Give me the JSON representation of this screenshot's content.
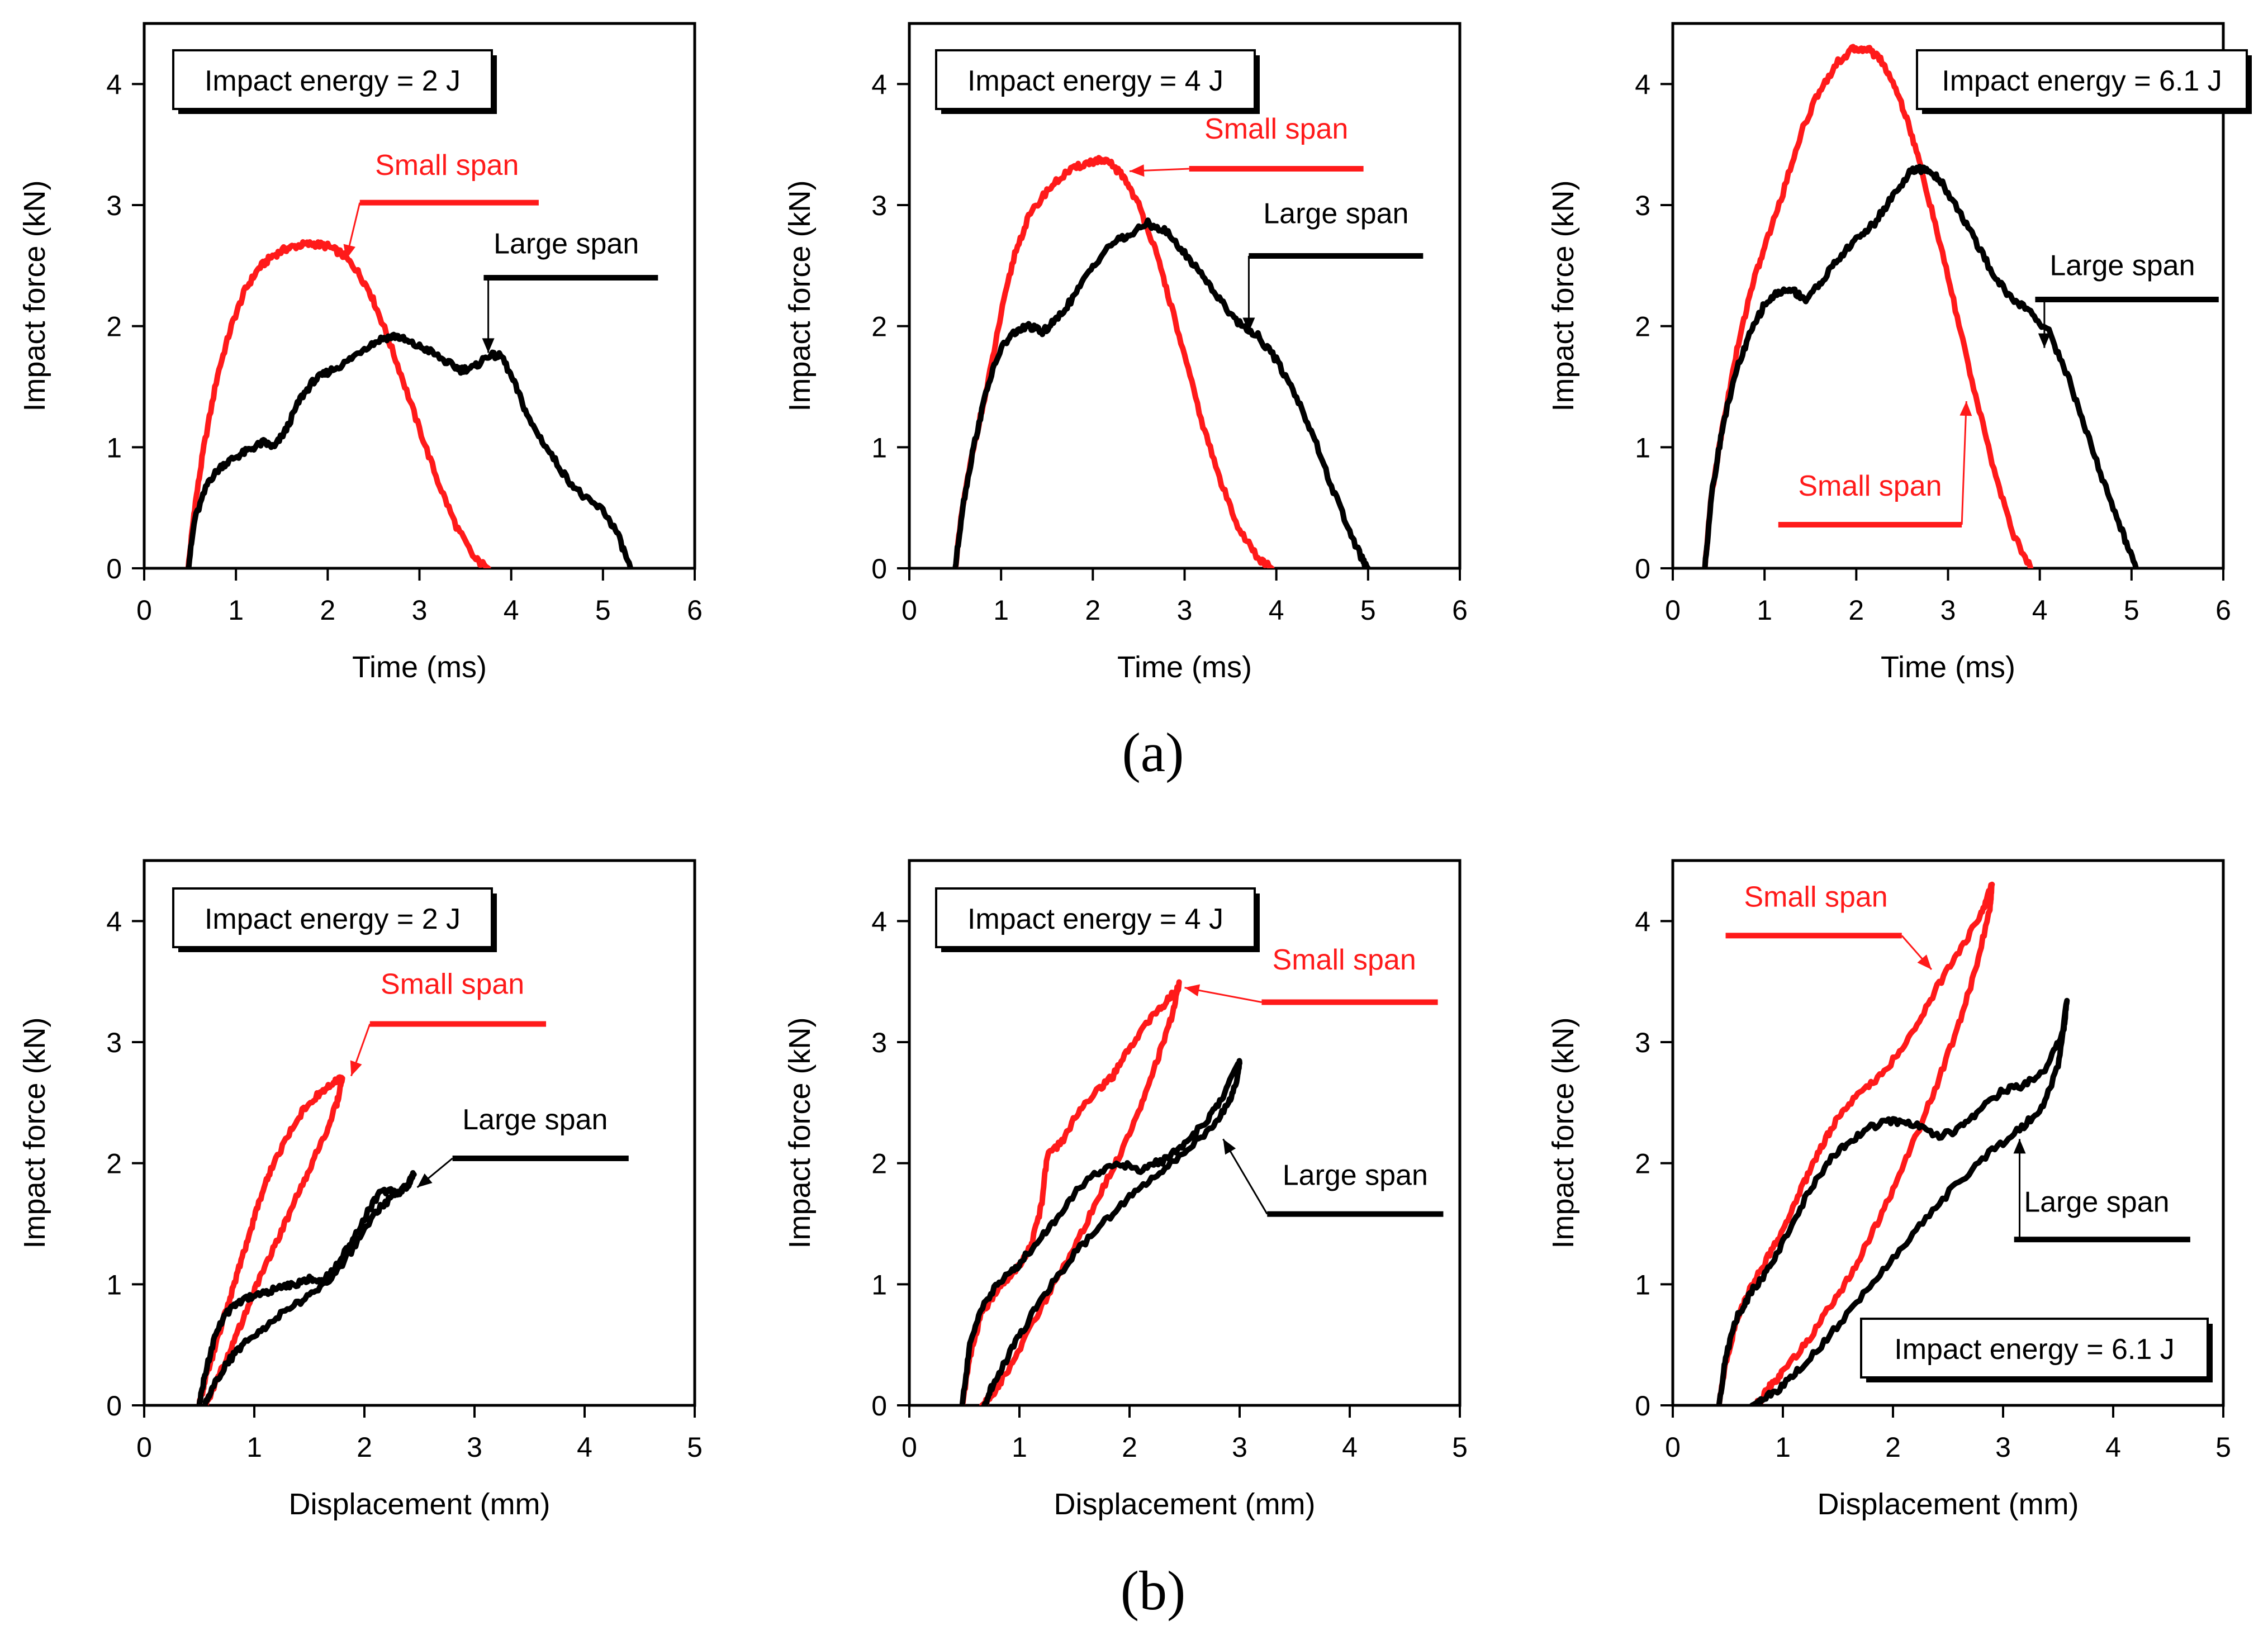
{
  "figure": {
    "row_labels": [
      "(a)",
      "(b)"
    ],
    "colors": {
      "small_span": "#ff1a1a",
      "large_span": "#000000",
      "axes": "#000000"
    }
  },
  "chart_data": [
    {
      "type": "line",
      "xlabel": "Time (ms)",
      "ylabel": "Impact force (kN)",
      "xlim": [
        0,
        6
      ],
      "ylim": [
        0,
        4.5
      ],
      "xticks": [
        0,
        1,
        2,
        3,
        4,
        5,
        6
      ],
      "yticks": [
        0,
        1,
        2,
        3,
        4
      ],
      "grid": false,
      "note": "Impact energy = 2 J",
      "series": [
        {
          "name": "Small span",
          "color": "#ff1a1a",
          "x": [
            0.48,
            0.55,
            0.65,
            0.8,
            0.95,
            1.1,
            1.25,
            1.4,
            1.55,
            1.7,
            1.85,
            2.0,
            2.15,
            2.3,
            2.45,
            2.6,
            2.8,
            3.0,
            3.2,
            3.4,
            3.6,
            3.75
          ],
          "y": [
            0.0,
            0.5,
            1.0,
            1.6,
            2.0,
            2.3,
            2.48,
            2.58,
            2.64,
            2.67,
            2.68,
            2.66,
            2.6,
            2.48,
            2.3,
            2.02,
            1.6,
            1.15,
            0.72,
            0.35,
            0.08,
            0.0
          ]
        },
        {
          "name": "Large span",
          "color": "#000000",
          "x": [
            0.48,
            0.55,
            0.7,
            0.85,
            1.0,
            1.15,
            1.3,
            1.42,
            1.55,
            1.7,
            1.85,
            2.0,
            2.2,
            2.4,
            2.6,
            2.75,
            2.9,
            3.1,
            3.3,
            3.45,
            3.6,
            3.75,
            3.9,
            4.05,
            4.2,
            4.4,
            4.6,
            4.8,
            5.0,
            5.15,
            5.3
          ],
          "y": [
            0.0,
            0.4,
            0.72,
            0.85,
            0.92,
            0.98,
            1.04,
            1.0,
            1.15,
            1.4,
            1.55,
            1.62,
            1.7,
            1.82,
            1.9,
            1.92,
            1.86,
            1.8,
            1.7,
            1.64,
            1.66,
            1.76,
            1.75,
            1.5,
            1.22,
            0.98,
            0.75,
            0.58,
            0.48,
            0.3,
            0.0
          ]
        }
      ],
      "annotations": [
        {
          "text": "Small span",
          "color": "#ff1a1a",
          "label_x": 3.3,
          "label_y": 3.25,
          "ul": [
            2.35,
            4.3,
            3.02
          ],
          "tip_x": 2.2,
          "tip_y": 2.55
        },
        {
          "text": "Large span",
          "color": "#000000",
          "label_x": 4.6,
          "label_y": 2.6,
          "ul": [
            3.7,
            5.6,
            2.4
          ],
          "tip_x": 3.75,
          "tip_y": 1.78
        }
      ]
    },
    {
      "type": "line",
      "xlabel": "Time (ms)",
      "ylabel": "Impact force (kN)",
      "xlim": [
        0,
        6
      ],
      "ylim": [
        0,
        4.5
      ],
      "xticks": [
        0,
        1,
        2,
        3,
        4,
        5,
        6
      ],
      "yticks": [
        0,
        1,
        2,
        3,
        4
      ],
      "grid": false,
      "note": "Impact energy = 4 J",
      "series": [
        {
          "name": "Small span",
          "color": "#ff1a1a",
          "x": [
            0.5,
            0.58,
            0.7,
            0.85,
            1.0,
            1.15,
            1.3,
            1.5,
            1.7,
            1.9,
            2.05,
            2.2,
            2.35,
            2.5,
            2.65,
            2.8,
            3.0,
            3.2,
            3.4,
            3.6,
            3.8,
            3.95
          ],
          "y": [
            0.0,
            0.5,
            1.0,
            1.5,
            2.1,
            2.6,
            2.9,
            3.12,
            3.26,
            3.34,
            3.37,
            3.34,
            3.22,
            3.0,
            2.7,
            2.32,
            1.75,
            1.18,
            0.7,
            0.32,
            0.08,
            0.0
          ]
        },
        {
          "name": "Large span",
          "color": "#000000",
          "x": [
            0.5,
            0.58,
            0.7,
            0.85,
            1.0,
            1.15,
            1.3,
            1.45,
            1.6,
            1.8,
            2.0,
            2.2,
            2.4,
            2.6,
            2.8,
            3.0,
            3.2,
            3.4,
            3.6,
            3.8,
            4.0,
            4.2,
            4.4,
            4.6,
            4.8,
            4.95,
            5.0
          ],
          "y": [
            0.0,
            0.5,
            1.0,
            1.5,
            1.82,
            1.95,
            2.0,
            1.95,
            2.05,
            2.25,
            2.5,
            2.68,
            2.75,
            2.85,
            2.78,
            2.6,
            2.42,
            2.2,
            2.02,
            1.92,
            1.72,
            1.45,
            1.1,
            0.68,
            0.3,
            0.05,
            0.0
          ]
        }
      ],
      "annotations": [
        {
          "text": "Small span",
          "color": "#ff1a1a",
          "label_x": 4.0,
          "label_y": 3.55,
          "ul": [
            3.05,
            4.95,
            3.3
          ],
          "tip_x": 2.4,
          "tip_y": 3.28
        },
        {
          "text": "Large span",
          "color": "#000000",
          "label_x": 4.65,
          "label_y": 2.85,
          "ul": [
            3.7,
            5.6,
            2.58
          ],
          "tip_x": 3.7,
          "tip_y": 1.95
        }
      ]
    },
    {
      "type": "line",
      "xlabel": "Time (ms)",
      "ylabel": "Impact force (kN)",
      "xlim": [
        0,
        6
      ],
      "ylim": [
        0,
        4.5
      ],
      "xticks": [
        0,
        1,
        2,
        3,
        4,
        5,
        6
      ],
      "yticks": [
        0,
        1,
        2,
        3,
        4
      ],
      "grid": false,
      "note": "Impact energy = 6.1 J",
      "series": [
        {
          "name": "Small span",
          "color": "#ff1a1a",
          "x": [
            0.35,
            0.42,
            0.55,
            0.7,
            0.85,
            1.0,
            1.2,
            1.4,
            1.6,
            1.8,
            1.95,
            2.1,
            2.25,
            2.4,
            2.55,
            2.7,
            2.9,
            3.1,
            3.3,
            3.5,
            3.7,
            3.9
          ],
          "y": [
            0.0,
            0.6,
            1.2,
            1.8,
            2.3,
            2.65,
            3.1,
            3.6,
            3.95,
            4.18,
            4.28,
            4.3,
            4.22,
            4.02,
            3.72,
            3.32,
            2.72,
            2.08,
            1.42,
            0.82,
            0.3,
            0.0
          ]
        },
        {
          "name": "Large span",
          "color": "#000000",
          "x": [
            0.35,
            0.42,
            0.55,
            0.7,
            0.85,
            1.0,
            1.15,
            1.3,
            1.45,
            1.6,
            1.8,
            2.0,
            2.2,
            2.4,
            2.6,
            2.75,
            2.9,
            3.1,
            3.3,
            3.5,
            3.7,
            3.9,
            4.1,
            4.3,
            4.5,
            4.7,
            4.9,
            5.05
          ],
          "y": [
            0.0,
            0.6,
            1.2,
            1.65,
            1.95,
            2.18,
            2.28,
            2.3,
            2.22,
            2.35,
            2.55,
            2.72,
            2.85,
            3.08,
            3.28,
            3.3,
            3.22,
            2.98,
            2.7,
            2.42,
            2.22,
            2.12,
            1.95,
            1.6,
            1.15,
            0.7,
            0.3,
            0.0
          ]
        }
      ],
      "annotations": [
        {
          "text": "Small span",
          "color": "#ff1a1a",
          "label_x": 2.15,
          "label_y": 0.6,
          "ul": [
            1.15,
            3.15,
            0.36
          ],
          "tip_x": 3.2,
          "tip_y": 1.38
        },
        {
          "text": "Large span",
          "color": "#000000",
          "label_x": 4.9,
          "label_y": 2.42,
          "ul": [
            3.95,
            5.95,
            2.22
          ],
          "tip_x": 4.05,
          "tip_y": 1.82
        }
      ]
    },
    {
      "type": "line",
      "xlabel": "Displacement (mm)",
      "ylabel": "Impact force (kN)",
      "xlim": [
        0,
        5
      ],
      "ylim": [
        0,
        4.5
      ],
      "xticks": [
        0,
        1,
        2,
        3,
        4,
        5
      ],
      "yticks": [
        0,
        1,
        2,
        3,
        4
      ],
      "grid": false,
      "note": "Impact energy = 2 J",
      "series": [
        {
          "name": "Small span",
          "color": "#ff1a1a",
          "x": [
            0.5,
            0.55,
            0.65,
            0.75,
            0.85,
            0.95,
            1.05,
            1.15,
            1.3,
            1.45,
            1.6,
            1.72,
            1.8,
            1.75,
            1.65,
            1.5,
            1.35,
            1.2,
            1.05,
            0.9,
            0.78,
            0.68,
            0.6,
            0.55
          ],
          "y": [
            0.0,
            0.2,
            0.5,
            0.8,
            1.1,
            1.4,
            1.7,
            1.95,
            2.22,
            2.45,
            2.58,
            2.66,
            2.7,
            2.5,
            2.25,
            1.95,
            1.65,
            1.35,
            1.05,
            0.72,
            0.45,
            0.25,
            0.08,
            0.0
          ]
        },
        {
          "name": "Large span",
          "color": "#000000",
          "x": [
            0.5,
            0.55,
            0.65,
            0.78,
            0.9,
            1.05,
            1.2,
            1.35,
            1.5,
            1.6,
            1.7,
            1.85,
            2.0,
            2.15,
            2.3,
            2.4,
            2.45,
            2.38,
            2.25,
            2.1,
            1.9,
            1.7,
            1.5,
            1.3,
            1.1,
            0.9,
            0.75,
            0.62,
            0.55
          ],
          "y": [
            0.0,
            0.25,
            0.6,
            0.8,
            0.88,
            0.92,
            0.96,
            1.0,
            1.04,
            1.02,
            1.1,
            1.3,
            1.55,
            1.78,
            1.75,
            1.82,
            1.92,
            1.8,
            1.72,
            1.6,
            1.3,
            1.05,
            0.9,
            0.8,
            0.65,
            0.5,
            0.35,
            0.15,
            0.0
          ]
        }
      ],
      "annotations": [
        {
          "text": "Small span",
          "color": "#ff1a1a",
          "label_x": 2.8,
          "label_y": 3.4,
          "ul": [
            2.05,
            3.65,
            3.15
          ],
          "tip_x": 1.88,
          "tip_y": 2.72
        },
        {
          "text": "Large span",
          "color": "#000000",
          "label_x": 3.55,
          "label_y": 2.28,
          "ul": [
            2.8,
            4.4,
            2.04
          ],
          "tip_x": 2.48,
          "tip_y": 1.8
        }
      ]
    },
    {
      "type": "line",
      "xlabel": "Displacement (mm)",
      "ylabel": "Impact force (kN)",
      "xlim": [
        0,
        5
      ],
      "ylim": [
        0,
        4.5
      ],
      "xticks": [
        0,
        1,
        2,
        3,
        4,
        5
      ],
      "yticks": [
        0,
        1,
        2,
        3,
        4
      ],
      "grid": false,
      "note": "Impact energy = 4 J",
      "series": [
        {
          "name": "Small span",
          "color": "#ff1a1a",
          "x": [
            0.48,
            0.55,
            0.65,
            0.8,
            0.95,
            1.1,
            1.2,
            1.25,
            1.4,
            1.55,
            1.7,
            1.85,
            2.0,
            2.15,
            2.3,
            2.42,
            2.45,
            2.38,
            2.25,
            2.1,
            1.9,
            1.7,
            1.5,
            1.3,
            1.1,
            0.95,
            0.82,
            0.72,
            0.66
          ],
          "y": [
            0.0,
            0.4,
            0.75,
            0.95,
            1.1,
            1.3,
            1.65,
            2.05,
            2.2,
            2.45,
            2.6,
            2.72,
            2.95,
            3.15,
            3.3,
            3.42,
            3.48,
            3.2,
            2.85,
            2.45,
            2.05,
            1.68,
            1.3,
            0.98,
            0.65,
            0.38,
            0.18,
            0.05,
            0.0
          ]
        },
        {
          "name": "Large span",
          "color": "#000000",
          "x": [
            0.48,
            0.55,
            0.65,
            0.8,
            0.95,
            1.1,
            1.3,
            1.5,
            1.7,
            1.9,
            2.1,
            2.3,
            2.5,
            2.7,
            2.85,
            3.0,
            2.98,
            2.9,
            2.75,
            2.5,
            2.25,
            2.0,
            1.75,
            1.5,
            1.25,
            1.05,
            0.88,
            0.75,
            0.68
          ],
          "y": [
            0.0,
            0.5,
            0.8,
            1.0,
            1.12,
            1.28,
            1.5,
            1.75,
            1.92,
            2.0,
            1.95,
            2.02,
            2.15,
            2.35,
            2.55,
            2.85,
            2.7,
            2.5,
            2.3,
            2.1,
            1.9,
            1.72,
            1.5,
            1.25,
            0.95,
            0.65,
            0.38,
            0.15,
            0.0
          ]
        }
      ],
      "annotations": [
        {
          "text": "Small span",
          "color": "#ff1a1a",
          "label_x": 3.95,
          "label_y": 3.6,
          "ul": [
            3.2,
            4.8,
            3.33
          ],
          "tip_x": 2.5,
          "tip_y": 3.45
        },
        {
          "text": "Large span",
          "color": "#000000",
          "label_x": 4.05,
          "label_y": 1.82,
          "ul": [
            3.25,
            4.85,
            1.58
          ],
          "tip_x": 2.85,
          "tip_y": 2.2
        }
      ]
    },
    {
      "type": "line",
      "xlabel": "Displacement (mm)",
      "ylabel": "Impact force (kN)",
      "xlim": [
        0,
        5
      ],
      "ylim": [
        0,
        4.5
      ],
      "xticks": [
        0,
        1,
        2,
        3,
        4,
        5
      ],
      "yticks": [
        0,
        1,
        2,
        3,
        4
      ],
      "grid": false,
      "note": "Impact energy = 6.1 J",
      "series": [
        {
          "name": "Small span",
          "color": "#ff1a1a",
          "x": [
            0.42,
            0.48,
            0.58,
            0.7,
            0.85,
            1.0,
            1.15,
            1.3,
            1.45,
            1.6,
            1.8,
            2.0,
            2.2,
            2.4,
            2.6,
            2.8,
            2.9,
            2.88,
            2.75,
            2.6,
            2.4,
            2.2,
            2.0,
            1.8,
            1.6,
            1.4,
            1.2,
            1.0,
            0.88,
            0.8,
            0.75
          ],
          "y": [
            0.0,
            0.35,
            0.7,
            0.95,
            1.2,
            1.45,
            1.75,
            2.05,
            2.3,
            2.5,
            2.65,
            2.85,
            3.1,
            3.45,
            3.75,
            4.05,
            4.3,
            4.1,
            3.6,
            3.15,
            2.65,
            2.2,
            1.78,
            1.4,
            1.05,
            0.78,
            0.5,
            0.28,
            0.15,
            0.05,
            0.0
          ]
        },
        {
          "name": "Large span",
          "color": "#000000",
          "x": [
            0.42,
            0.48,
            0.58,
            0.7,
            0.85,
            1.0,
            1.2,
            1.4,
            1.6,
            1.8,
            2.0,
            2.2,
            2.4,
            2.6,
            2.8,
            3.0,
            3.2,
            3.4,
            3.55,
            3.58,
            3.5,
            3.35,
            3.15,
            2.9,
            2.6,
            2.3,
            2.0,
            1.7,
            1.4,
            1.15,
            0.95,
            0.8,
            0.72
          ],
          "y": [
            0.0,
            0.4,
            0.72,
            0.92,
            1.1,
            1.35,
            1.7,
            2.0,
            2.18,
            2.3,
            2.35,
            2.32,
            2.22,
            2.28,
            2.45,
            2.6,
            2.65,
            2.8,
            3.1,
            3.35,
            2.8,
            2.45,
            2.28,
            2.1,
            1.85,
            1.55,
            1.22,
            0.88,
            0.55,
            0.3,
            0.12,
            0.04,
            0.0
          ]
        }
      ],
      "annotations": [
        {
          "text": "Small span",
          "color": "#ff1a1a",
          "label_x": 1.3,
          "label_y": 4.12,
          "ul": [
            0.48,
            2.08,
            3.88
          ],
          "tip_x": 2.35,
          "tip_y": 3.6
        },
        {
          "text": "Large span",
          "color": "#000000",
          "label_x": 3.85,
          "label_y": 1.6,
          "ul": [
            3.1,
            4.7,
            1.37
          ],
          "tip_x": 3.15,
          "tip_y": 2.2
        }
      ]
    }
  ]
}
